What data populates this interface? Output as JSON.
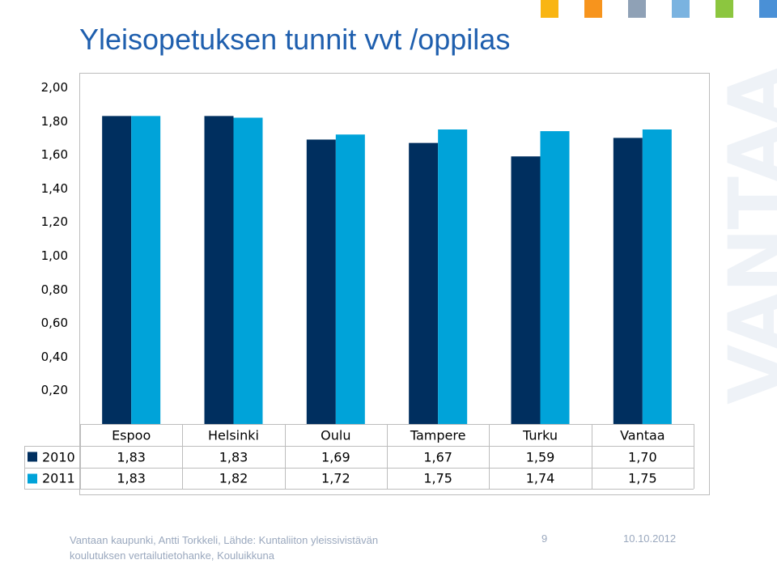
{
  "title": "Yleisopetuksen tunnit vvt /oppilas",
  "top_squares": [
    "#f9b512",
    "#f7941d",
    "#8fa1b6",
    "#7ab3e0",
    "#8cc63f",
    "#4a90d6"
  ],
  "watermark": "VANTAA",
  "chart_data": {
    "type": "bar",
    "title": "Yleisopetuksen tunnit vvt /oppilas",
    "categories": [
      "Espoo",
      "Helsinki",
      "Oulu",
      "Tampere",
      "Turku",
      "Vantaa"
    ],
    "series": [
      {
        "name": "2010",
        "color": "#002f5f",
        "values": [
          1.83,
          1.83,
          1.69,
          1.67,
          1.59,
          1.7
        ],
        "labels": [
          "1,83",
          "1,83",
          "1,69",
          "1,67",
          "1,59",
          "1,70"
        ]
      },
      {
        "name": "2011",
        "color": "#00a3d9",
        "values": [
          1.83,
          1.82,
          1.72,
          1.75,
          1.74,
          1.75
        ],
        "labels": [
          "1,83",
          "1,82",
          "1,72",
          "1,75",
          "1,74",
          "1,75"
        ]
      }
    ],
    "yticks": [
      "2,00",
      "1,80",
      "1,60",
      "1,40",
      "1,20",
      "1,00",
      "0,80",
      "0,60",
      "0,40",
      "0,20"
    ],
    "ylim": [
      0,
      2.0
    ],
    "grid": false,
    "legend": "data table below chart"
  },
  "footer": {
    "source_line1": "Vantaan kaupunki, Antti Torkkeli, Lähde: Kuntaliiton yleissivistävän",
    "source_line2": "koulutuksen vertailutietohanke, Kouluikkuna",
    "page_number": "9",
    "date": "10.10.2012"
  }
}
